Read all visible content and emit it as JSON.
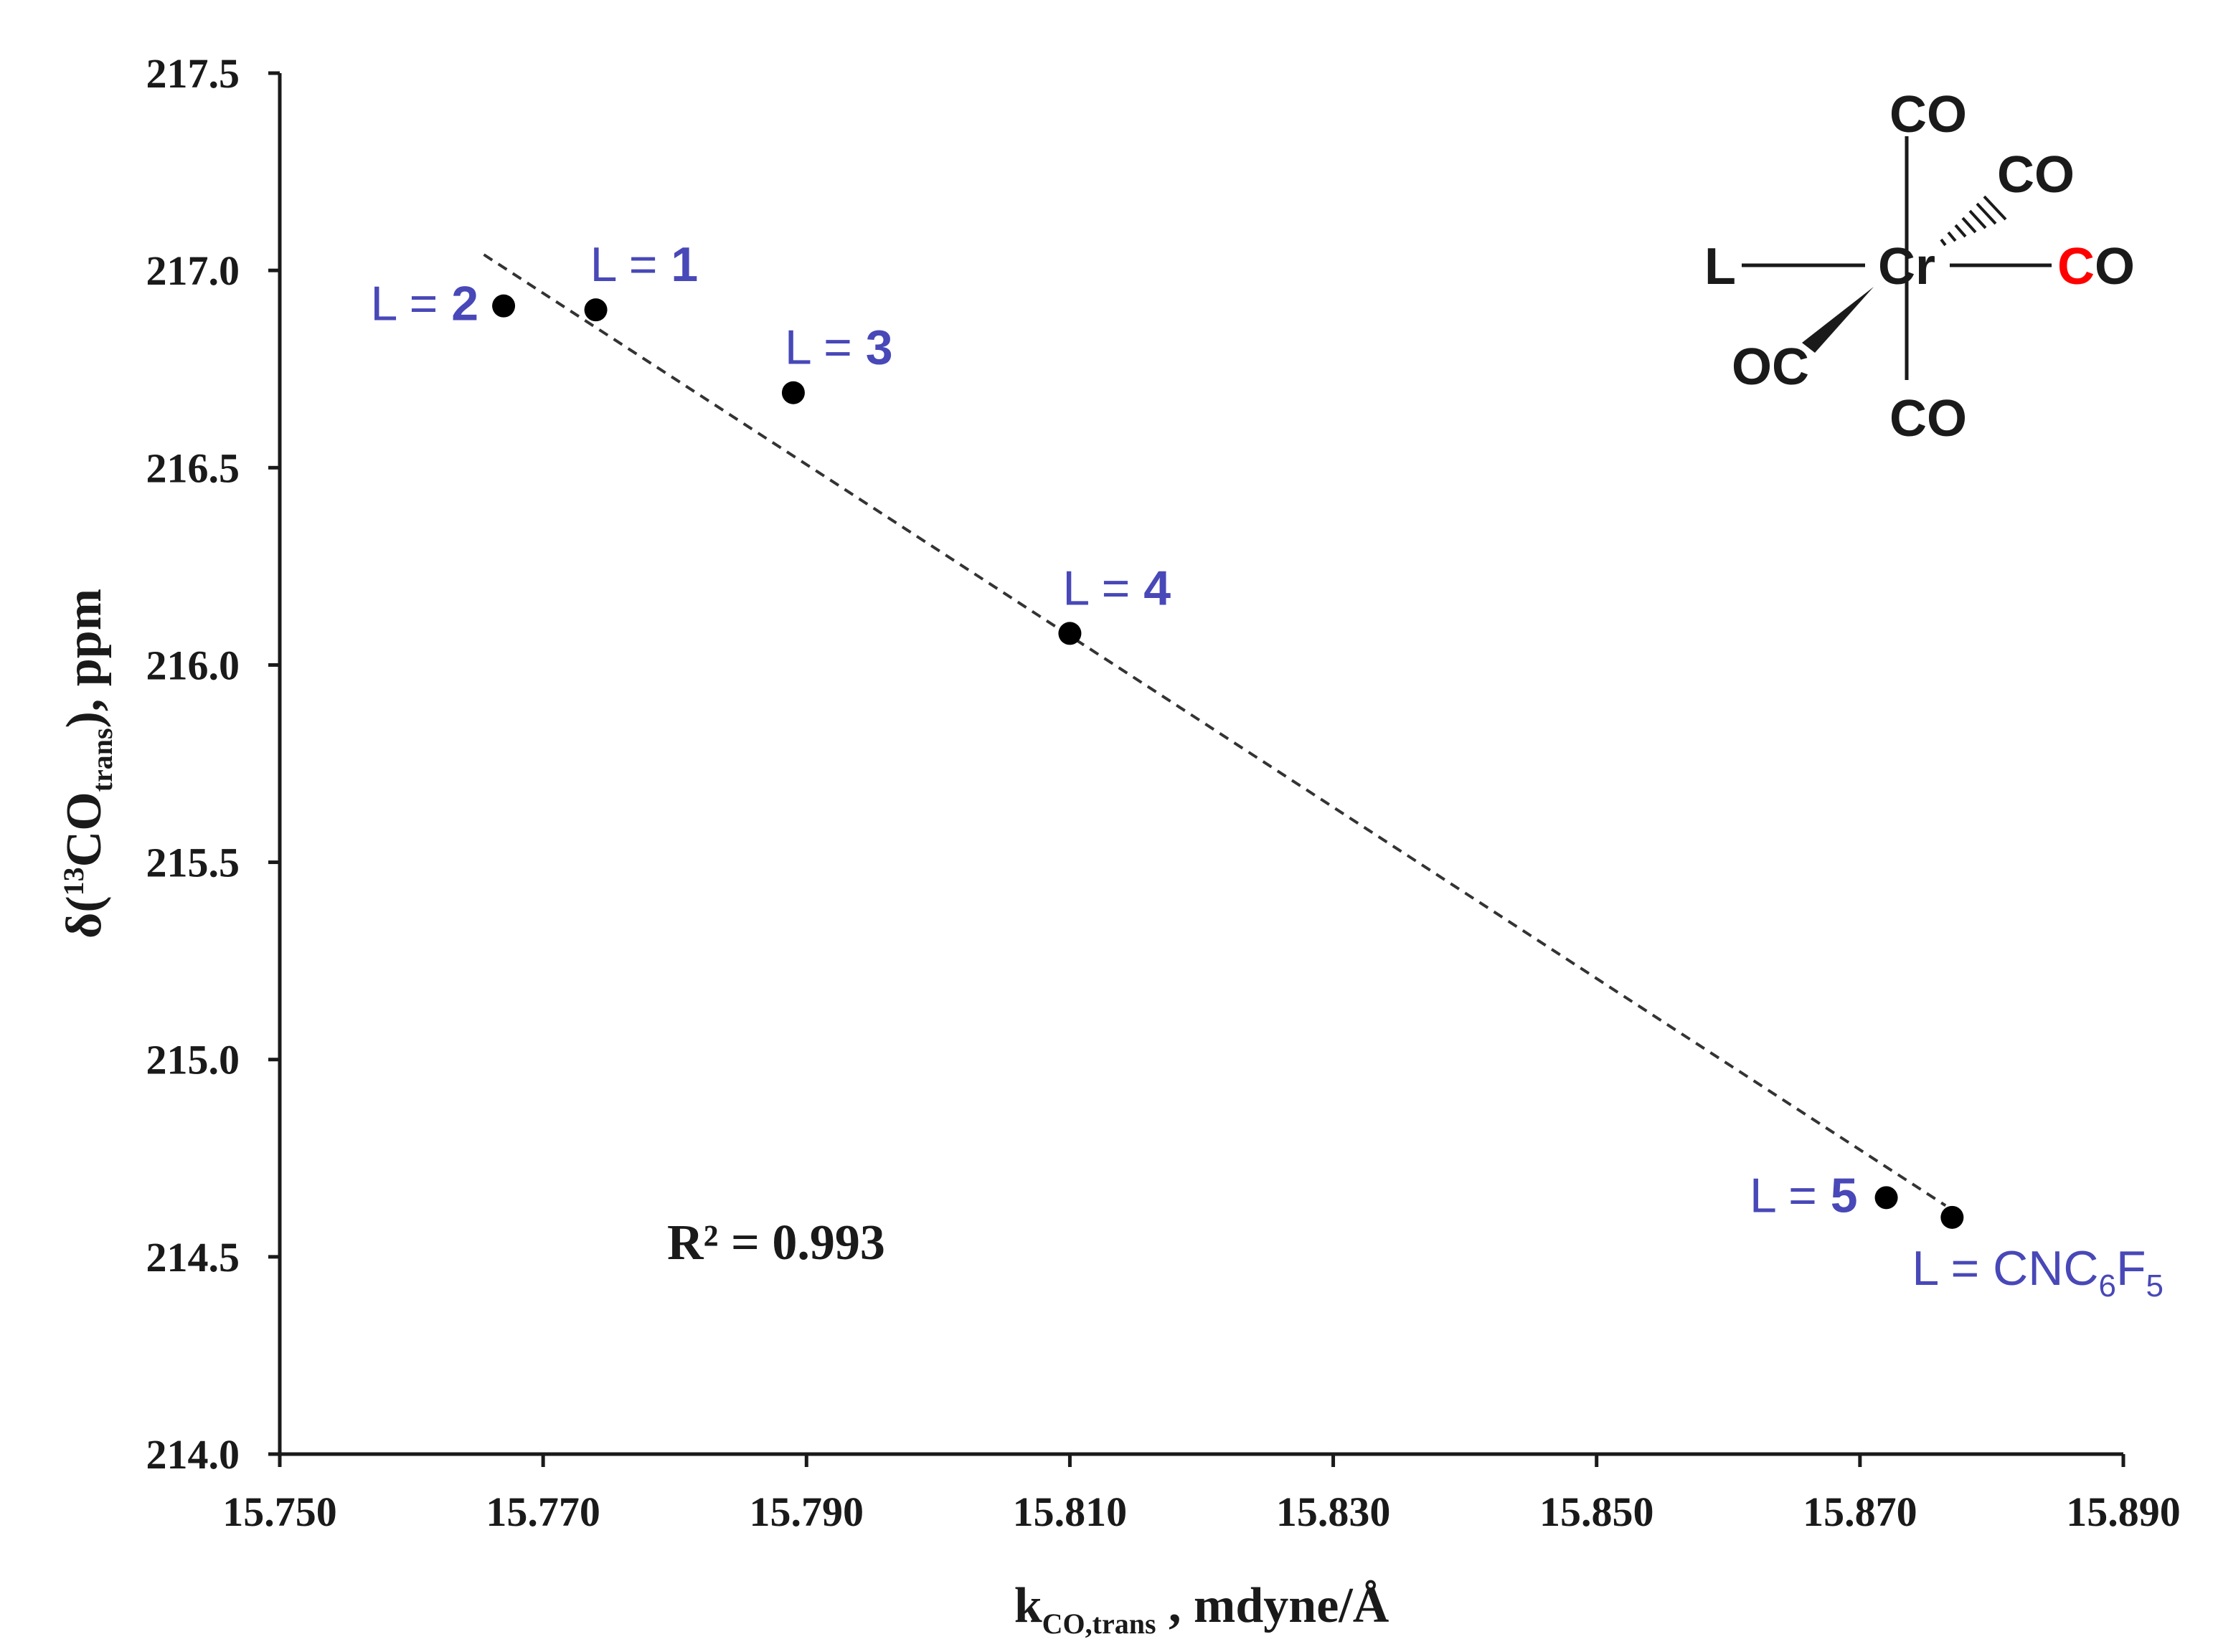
{
  "chart_data": {
    "type": "scatter",
    "title": "",
    "xlabel": {
      "main": "k",
      "sub": "CO,trans",
      "rest": " , mdyne/Å"
    },
    "ylabel": {
      "pre": "δ(",
      "sup": "13",
      "main": "CO",
      "sub": "trans",
      "rest": "), ppm"
    },
    "xlim": [
      15.75,
      15.89
    ],
    "ylim": [
      214.0,
      217.5
    ],
    "x_ticks": [
      "15.750",
      "15.770",
      "15.790",
      "15.810",
      "15.830",
      "15.850",
      "15.870",
      "15.890"
    ],
    "y_ticks": [
      "214.0",
      "214.5",
      "215.0",
      "215.5",
      "216.0",
      "216.5",
      "217.0",
      "217.5"
    ],
    "points": [
      {
        "x": 15.767,
        "y": 216.91,
        "label_pre": "L = ",
        "label_num": "2",
        "label_sub": "",
        "label_post": ""
      },
      {
        "x": 15.774,
        "y": 216.9,
        "label_pre": "L = ",
        "label_num": "1",
        "label_sub": "",
        "label_post": ""
      },
      {
        "x": 15.789,
        "y": 216.69,
        "label_pre": "L = ",
        "label_num": "3",
        "label_sub": "",
        "label_post": ""
      },
      {
        "x": 15.81,
        "y": 216.08,
        "label_pre": "L = ",
        "label_num": "4",
        "label_sub": "",
        "label_post": ""
      },
      {
        "x": 15.872,
        "y": 214.65,
        "label_pre": "L = ",
        "label_num": "5",
        "label_sub": "",
        "label_post": ""
      },
      {
        "x": 15.877,
        "y": 214.6,
        "label_pre": "L = CNC",
        "label_num": "",
        "label_sub": "6",
        "label_post": "F",
        "label_sub2": "5"
      }
    ],
    "trendline": {
      "style": "dashed",
      "x_start": 15.7655,
      "y_start": 217.04,
      "x_end": 15.8765,
      "y_end": 214.63
    },
    "annotation": {
      "r2_label": "R² = 0.993"
    }
  },
  "molecule": {
    "atoms": {
      "top": "CO",
      "back": "CO",
      "left": "L",
      "center": "Cr",
      "right_red": "C",
      "right_rest": "O",
      "front": "OC",
      "bottom": "CO"
    },
    "colors": {
      "ligand": "#4848b8",
      "highlight": "#ff0000",
      "bond": "#1a1a1a"
    }
  },
  "colors": {
    "axis": "#1a1a1a",
    "point": "#000000",
    "label": "#4848b8",
    "trendline": "#333333"
  }
}
